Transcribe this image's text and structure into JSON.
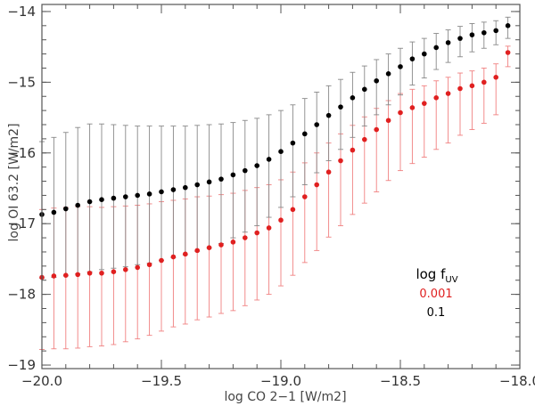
{
  "chart_data": {
    "type": "scatter",
    "xlabel": "log CO 2−1 [W/m2]",
    "ylabel": "log OI 63.2 [W/m2]",
    "xlim": [
      -20.0,
      -18.0
    ],
    "ylim": [
      -19.05,
      -13.9
    ],
    "x_ticks": [
      "−20.0",
      "−19.5",
      "−19.0",
      "−18.5",
      "−18.0"
    ],
    "y_ticks": [
      "−19",
      "−18",
      "−17",
      "−16",
      "−15",
      "−14"
    ],
    "grid": false,
    "legend": {
      "position": "bottom-right",
      "title_main": "log f",
      "title_sub": "UV"
    },
    "series": [
      {
        "name": "0.001",
        "color": "#e02020",
        "x": [
          -20.0,
          -19.95,
          -19.9,
          -19.85,
          -19.8,
          -19.75,
          -19.7,
          -19.65,
          -19.6,
          -19.55,
          -19.5,
          -19.45,
          -19.4,
          -19.35,
          -19.3,
          -19.25,
          -19.2,
          -19.15,
          -19.1,
          -19.05,
          -19.0,
          -18.95,
          -18.9,
          -18.85,
          -18.8,
          -18.75,
          -18.7,
          -18.65,
          -18.6,
          -18.55,
          -18.5,
          -18.45,
          -18.4,
          -18.35,
          -18.3,
          -18.25,
          -18.2,
          -18.15,
          -18.1,
          -18.05
        ],
        "y": [
          -17.76,
          -17.74,
          -17.73,
          -17.72,
          -17.7,
          -17.7,
          -17.68,
          -17.65,
          -17.62,
          -17.58,
          -17.52,
          -17.47,
          -17.43,
          -17.38,
          -17.34,
          -17.3,
          -17.26,
          -17.2,
          -17.13,
          -17.06,
          -16.95,
          -16.8,
          -16.62,
          -16.45,
          -16.27,
          -16.11,
          -15.96,
          -15.81,
          -15.67,
          -15.54,
          -15.43,
          -15.36,
          -15.3,
          -15.22,
          -15.16,
          -15.09,
          -15.05,
          -15.0,
          -14.93,
          -14.58
        ],
        "yerr_low": [
          1.02,
          1.03,
          1.04,
          1.04,
          1.04,
          1.03,
          1.03,
          1.02,
          1.01,
          1.0,
          1.0,
          0.99,
          0.99,
          0.98,
          0.98,
          0.97,
          0.97,
          0.96,
          0.95,
          0.94,
          0.93,
          0.93,
          0.93,
          0.93,
          0.92,
          0.92,
          0.91,
          0.9,
          0.88,
          0.85,
          0.82,
          0.79,
          0.76,
          0.73,
          0.7,
          0.66,
          0.62,
          0.58,
          0.53,
          0.2
        ],
        "yerr_high": [
          0.96,
          0.96,
          0.96,
          0.96,
          0.94,
          0.93,
          0.92,
          0.9,
          0.88,
          0.86,
          0.83,
          0.8,
          0.78,
          0.76,
          0.73,
          0.71,
          0.69,
          0.67,
          0.64,
          0.61,
          0.57,
          0.53,
          0.48,
          0.45,
          0.41,
          0.38,
          0.35,
          0.32,
          0.3,
          0.28,
          0.27,
          0.26,
          0.25,
          0.24,
          0.23,
          0.22,
          0.21,
          0.2,
          0.19,
          0.09
        ]
      },
      {
        "name": "0.1",
        "color": "#000000",
        "x": [
          -20.0,
          -19.95,
          -19.9,
          -19.85,
          -19.8,
          -19.75,
          -19.7,
          -19.65,
          -19.6,
          -19.55,
          -19.5,
          -19.45,
          -19.4,
          -19.35,
          -19.3,
          -19.25,
          -19.2,
          -19.15,
          -19.1,
          -19.05,
          -19.0,
          -18.95,
          -18.9,
          -18.85,
          -18.8,
          -18.75,
          -18.7,
          -18.65,
          -18.6,
          -18.55,
          -18.5,
          -18.45,
          -18.4,
          -18.35,
          -18.3,
          -18.25,
          -18.2,
          -18.15,
          -18.1,
          -18.05
        ],
        "y": [
          -16.87,
          -16.84,
          -16.79,
          -16.74,
          -16.69,
          -16.66,
          -16.64,
          -16.62,
          -16.6,
          -16.58,
          -16.55,
          -16.52,
          -16.49,
          -16.45,
          -16.41,
          -16.37,
          -16.31,
          -16.25,
          -16.18,
          -16.09,
          -15.98,
          -15.86,
          -15.73,
          -15.6,
          -15.47,
          -15.35,
          -15.22,
          -15.1,
          -14.98,
          -14.88,
          -14.78,
          -14.67,
          -14.6,
          -14.51,
          -14.44,
          -14.38,
          -14.33,
          -14.3,
          -14.27,
          -14.2
        ],
        "yerr_low": [
          0.9,
          0.92,
          0.95,
          0.97,
          0.99,
          0.99,
          0.99,
          0.99,
          0.98,
          0.98,
          0.97,
          0.96,
          0.95,
          0.94,
          0.93,
          0.91,
          0.89,
          0.87,
          0.85,
          0.82,
          0.79,
          0.76,
          0.72,
          0.68,
          0.64,
          0.6,
          0.56,
          0.52,
          0.48,
          0.44,
          0.4,
          0.37,
          0.34,
          0.31,
          0.28,
          0.26,
          0.24,
          0.22,
          0.2,
          0.18
        ],
        "yerr_high": [
          1.03,
          1.06,
          1.08,
          1.1,
          1.1,
          1.07,
          1.04,
          1.01,
          0.98,
          0.96,
          0.93,
          0.9,
          0.87,
          0.84,
          0.81,
          0.78,
          0.74,
          0.71,
          0.67,
          0.63,
          0.58,
          0.54,
          0.5,
          0.46,
          0.42,
          0.39,
          0.36,
          0.33,
          0.3,
          0.28,
          0.26,
          0.24,
          0.22,
          0.2,
          0.18,
          0.17,
          0.16,
          0.15,
          0.14,
          0.12
        ]
      }
    ]
  }
}
